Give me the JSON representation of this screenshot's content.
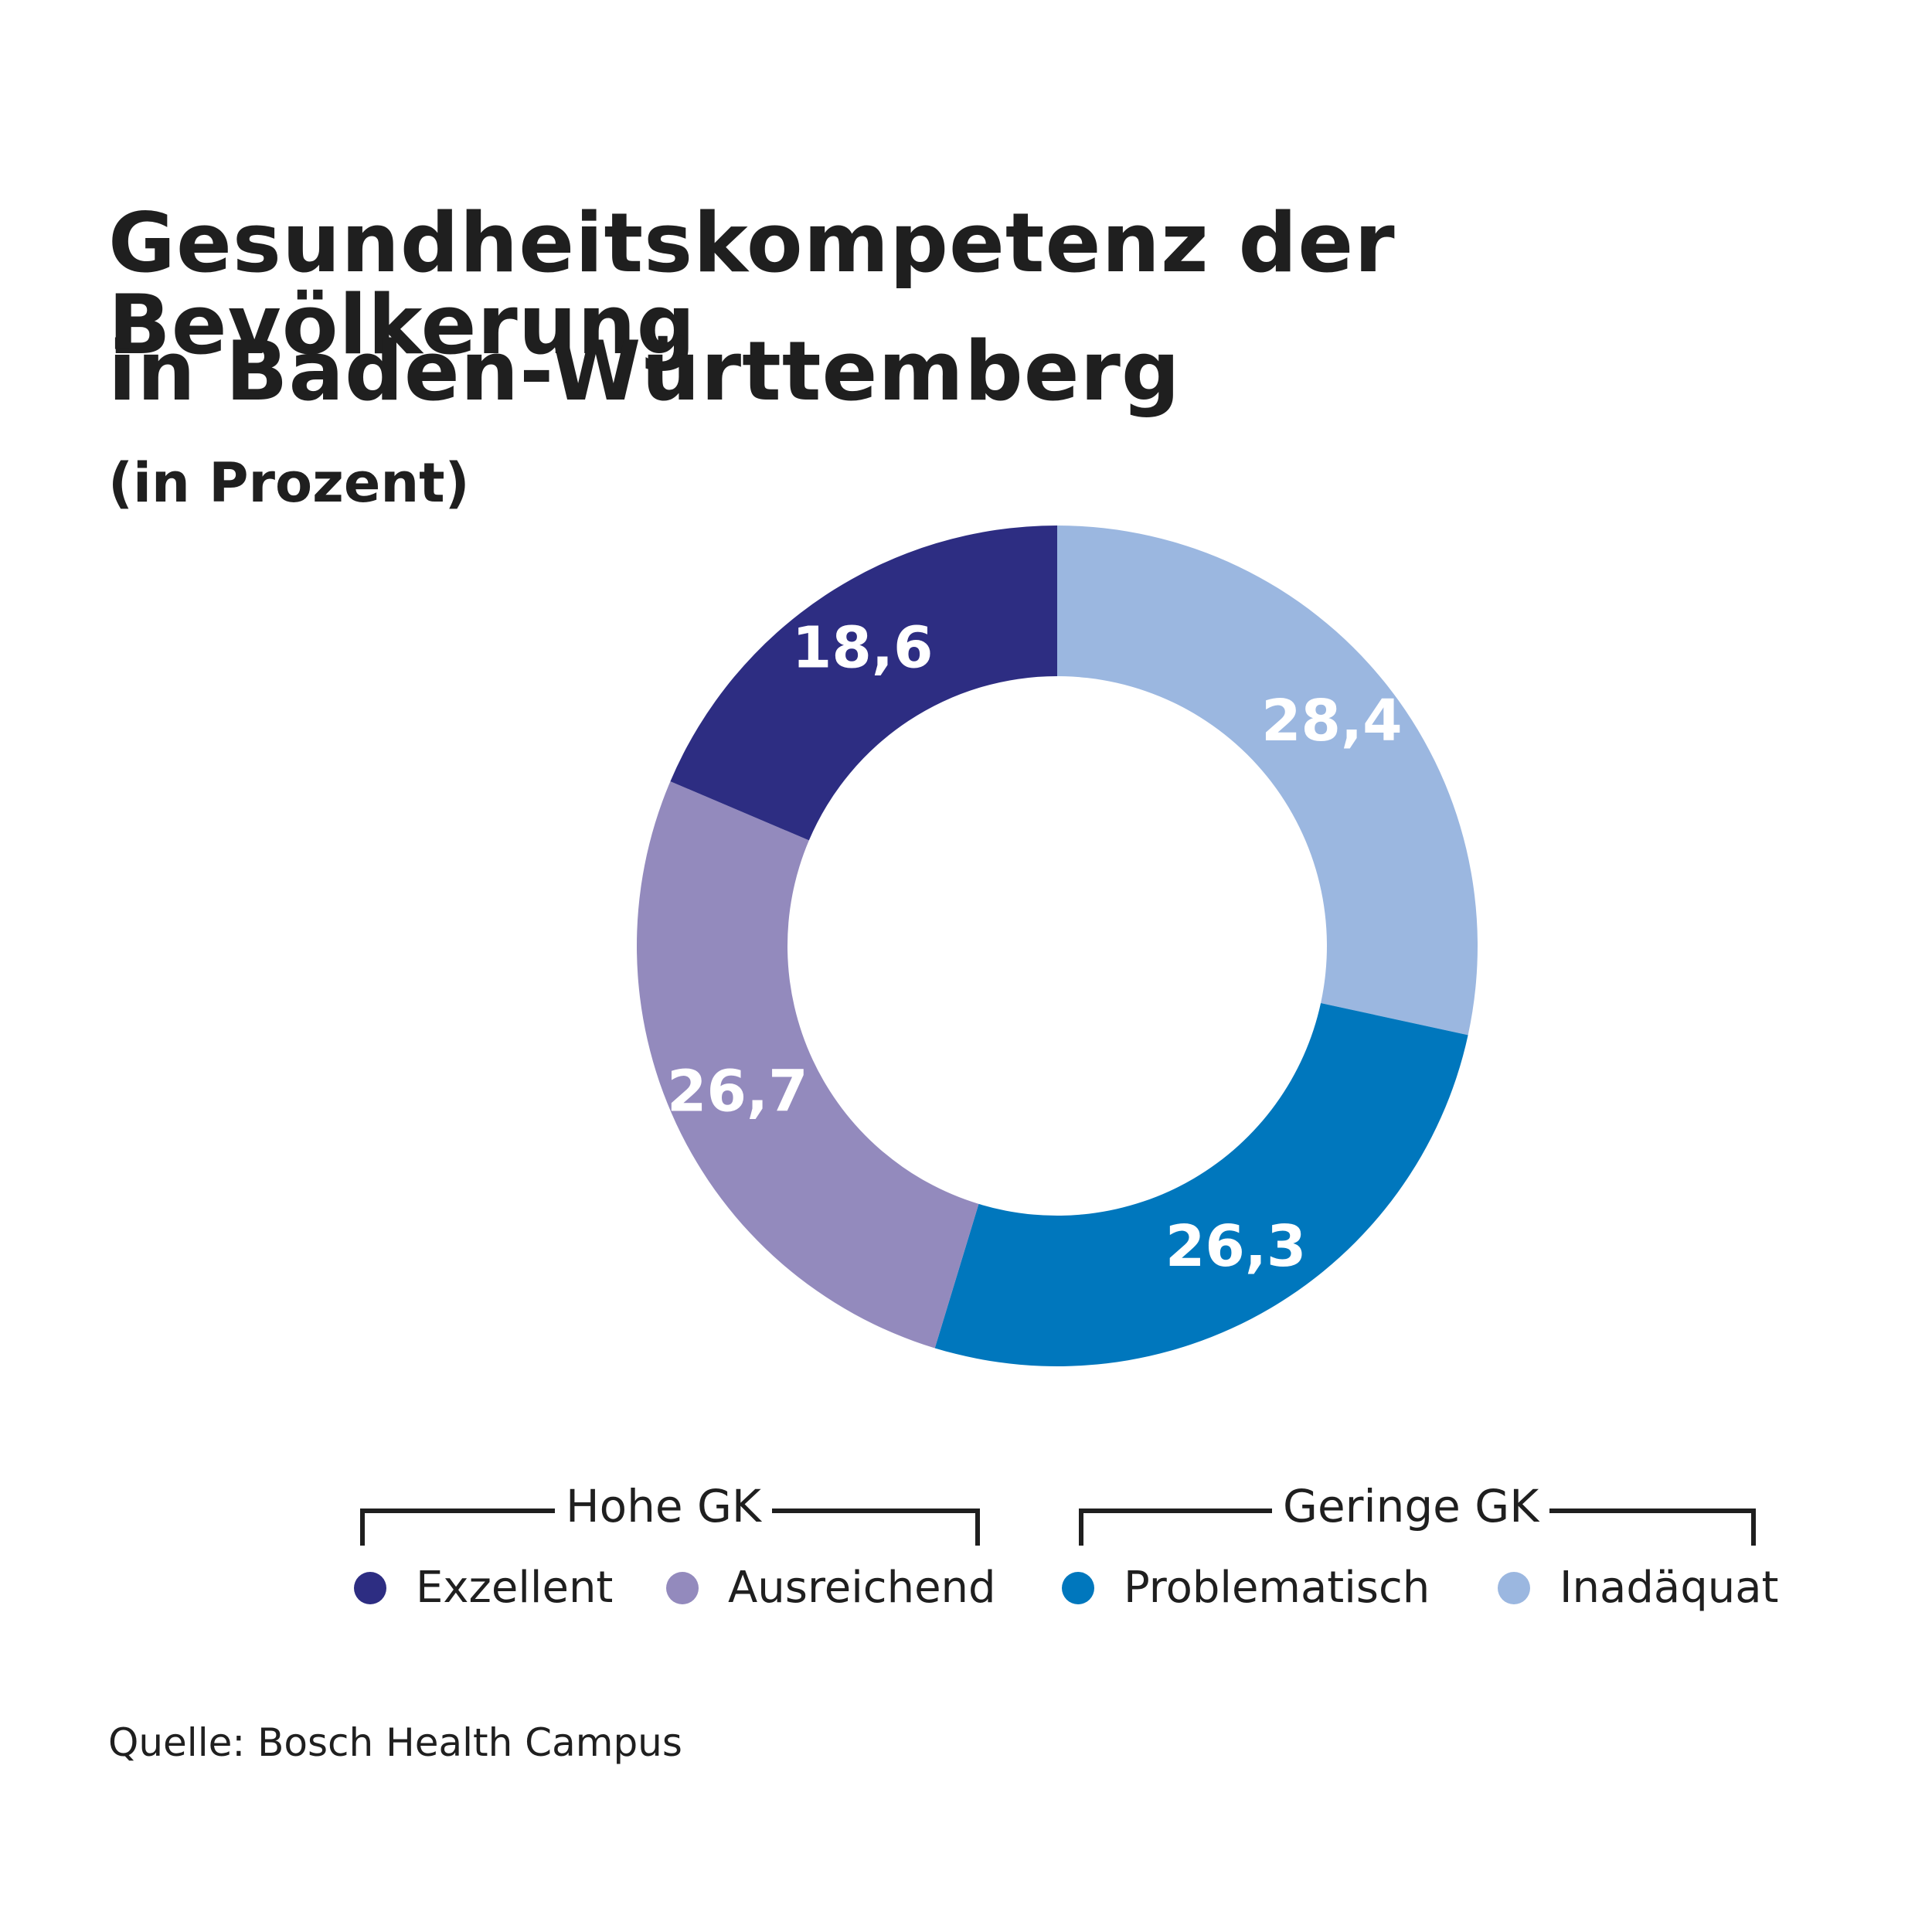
{
  "header": {
    "title_line1": "Gesundheitskompetenz der Bevölkerung",
    "title_line2": "in Baden-Württemberg",
    "subtitle": "(in Prozent)"
  },
  "legend": {
    "groups": [
      {
        "label": "Hohe GK",
        "items": [
          "Exzellent",
          "Ausreichend"
        ]
      },
      {
        "label": "Geringe GK",
        "items": [
          "Problematisch",
          "Inadäquat"
        ]
      }
    ],
    "items": [
      {
        "label": "Exzellent",
        "color": "#2d2d82"
      },
      {
        "label": "Ausreichend",
        "color": "#938abd"
      },
      {
        "label": "Problematisch",
        "color": "#0077bd"
      },
      {
        "label": "Inadäquat",
        "color": "#9bb7e0"
      }
    ]
  },
  "footer": {
    "source": "Quelle: Bosch Health Campus"
  },
  "chart_data": {
    "type": "pie",
    "variant": "donut",
    "title": "Gesundheitskompetenz der Bevölkerung in Baden-Württemberg",
    "subtitle": "(in Prozent)",
    "unit": "%",
    "start": "12 o'clock, clockwise",
    "slices": [
      {
        "label": "Inadäquat",
        "value": 28.4,
        "display": "28,4",
        "color": "#9bb7e0",
        "group": "Geringe GK"
      },
      {
        "label": "Problematisch",
        "value": 26.3,
        "display": "26,3",
        "color": "#0077bd",
        "group": "Geringe GK"
      },
      {
        "label": "Ausreichend",
        "value": 26.7,
        "display": "26,7",
        "color": "#938abd",
        "group": "Hohe GK"
      },
      {
        "label": "Exzellent",
        "value": 18.6,
        "display": "18,6",
        "color": "#2d2d82",
        "group": "Hohe GK"
      }
    ],
    "legend_position": "bottom",
    "source": "Quelle: Bosch Health Campus"
  }
}
